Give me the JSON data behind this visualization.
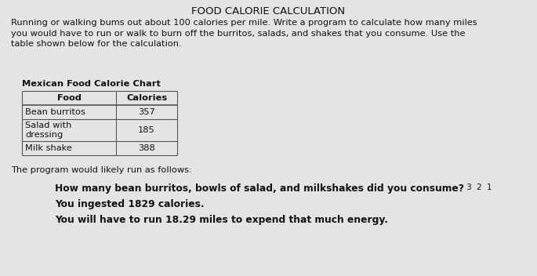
{
  "title": "FOOD CALORIE CALCULATION",
  "intro_text": "Running or walking bums out about 100 calories per mile. Write a program to calculate how many miles\nyou would have to run or walk to burn off the burritos, salads, and shakes that you consume. Use the\ntable shown below for the calculation.",
  "table_title": "Mexican Food Calorie Chart",
  "table_headers": [
    "Food",
    "Calories"
  ],
  "table_rows": [
    [
      "Bean burritos",
      "357"
    ],
    [
      "Salad with\ndressing",
      "185"
    ],
    [
      "Milk shake",
      "388"
    ]
  ],
  "program_label": "The program would likely run as follows:",
  "program_lines": [
    {
      "text": "How many bean burritos, bowls of salad, and milkshakes did you consume?",
      "suffix": " 3  2  1"
    },
    {
      "text": "You ingested 1829 calories.",
      "suffix": ""
    },
    {
      "text": "You will have to run 18.29 miles to expend that much energy.",
      "suffix": ""
    }
  ],
  "bg_color": "#e4e4e4",
  "text_color": "#111111",
  "table_border_color": "#555555",
  "title_fontsize": 9.5,
  "body_fontsize": 8.2,
  "table_fontsize": 8.2,
  "program_fontsize": 8.8
}
